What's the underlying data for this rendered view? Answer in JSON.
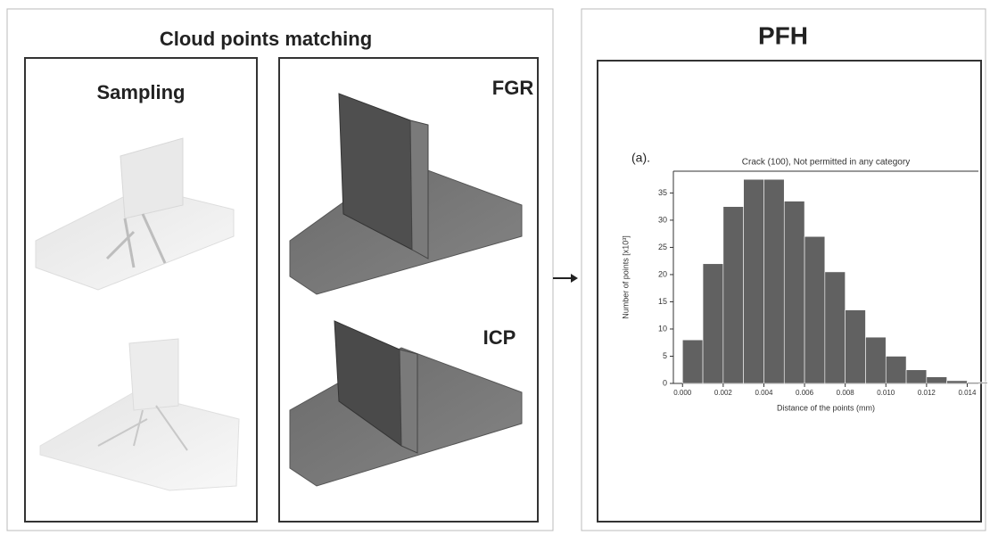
{
  "left_panel": {
    "title": "Cloud points matching",
    "sampling_label": "Sampling",
    "fgr_label": "FGR",
    "icp_label": "ICP"
  },
  "right_panel": {
    "title": "PFH"
  },
  "chart_data": {
    "type": "histogram",
    "annotation": "(a).",
    "title": "Crack (100), Not permitted in any category",
    "xlabel": "Distance of the points (mm)",
    "ylabel": "Number of points [x10³]",
    "bins": [
      0,
      0.001,
      0.002,
      0.003,
      0.004,
      0.005,
      0.006,
      0.007,
      0.008,
      0.009,
      0.01,
      0.011,
      0.012,
      0.013,
      0.014,
      0.015
    ],
    "counts": [
      8,
      22,
      32.5,
      37.5,
      37.5,
      33.5,
      27,
      20.5,
      13.5,
      8.5,
      5,
      2.5,
      1.2,
      0.5,
      0.2
    ],
    "color": "#616161",
    "xlim": [
      -0.00045,
      0.01455
    ],
    "ylim": [
      0,
      39
    ],
    "xticks": [
      {
        "value": 0,
        "label": "0.000"
      },
      {
        "value": 0.002,
        "label": "0.002"
      },
      {
        "value": 0.004,
        "label": "0.004"
      },
      {
        "value": 0.006,
        "label": "0.006"
      },
      {
        "value": 0.008,
        "label": "0.008"
      },
      {
        "value": 0.01,
        "label": "0.010"
      },
      {
        "value": 0.012,
        "label": "0.012"
      },
      {
        "value": 0.014,
        "label": "0.014"
      }
    ],
    "yticks": [
      0,
      5,
      10,
      15,
      20,
      25,
      30,
      35
    ]
  }
}
